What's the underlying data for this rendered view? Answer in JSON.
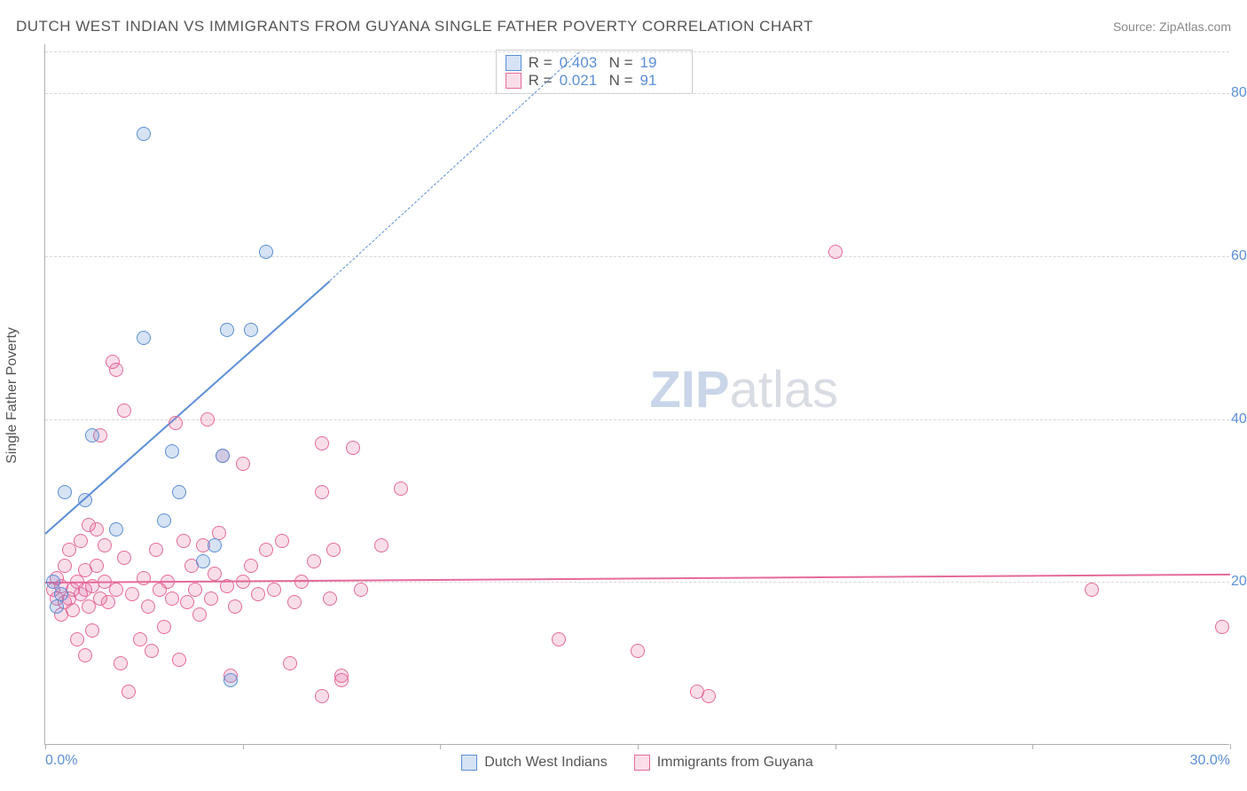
{
  "title": "DUTCH WEST INDIAN VS IMMIGRANTS FROM GUYANA SINGLE FATHER POVERTY CORRELATION CHART",
  "source": "Source: ZipAtlas.com",
  "ylabel": "Single Father Poverty",
  "watermark_zip": "ZIP",
  "watermark_atlas": "atlas",
  "chart": {
    "type": "scatter",
    "background_color": "#ffffff",
    "grid_color": "#d8d8d8",
    "axis_color": "#b0b0b0",
    "tick_label_color": "#5b8fd6",
    "label_color": "#555555",
    "xlim": [
      0,
      30
    ],
    "ylim": [
      0,
      86
    ],
    "xticks": [
      0,
      5,
      10,
      15,
      20,
      25,
      30
    ],
    "xtick_labels": {
      "0": "0.0%",
      "30": "30.0%"
    },
    "yticks": [
      20,
      40,
      60,
      80
    ],
    "ytick_labels": {
      "20": "20.0%",
      "40": "40.0%",
      "60": "60.0%",
      "80": "80.0%"
    },
    "watermark_color_bold": "#c9d5e8",
    "watermark_color_light": "#d9dde3",
    "watermark_fontsize": 58,
    "point_radius": 8,
    "point_border_width": 1.5,
    "point_fill_opacity": 0.25
  },
  "series": {
    "blue": {
      "label": "Dutch West Indians",
      "color": "#5b8fd6",
      "fill": "rgba(91,143,214,0.25)",
      "R": "0.403",
      "N": "19",
      "trend_solid": {
        "x1": 0,
        "y1": 26,
        "x2": 7.2,
        "y2": 57,
        "width": 2.5
      },
      "trend_dashed": {
        "x1": 7.2,
        "y1": 57,
        "x2": 13.5,
        "y2": 85,
        "width": 1
      },
      "points": [
        [
          0.2,
          20
        ],
        [
          0.3,
          17
        ],
        [
          0.4,
          18.5
        ],
        [
          0.5,
          31
        ],
        [
          1.0,
          30
        ],
        [
          1.2,
          38
        ],
        [
          1.8,
          26.5
        ],
        [
          2.5,
          75
        ],
        [
          2.5,
          50
        ],
        [
          3.0,
          27.5
        ],
        [
          3.2,
          36
        ],
        [
          3.4,
          31
        ],
        [
          4.0,
          22.5
        ],
        [
          4.3,
          24.5
        ],
        [
          4.5,
          35.5
        ],
        [
          4.6,
          51
        ],
        [
          4.7,
          8
        ],
        [
          5.6,
          60.5
        ],
        [
          5.2,
          51
        ]
      ]
    },
    "pink": {
      "label": "Immigrants from Guyana",
      "color": "#e56a9a",
      "fill": "rgba(229,106,154,0.22)",
      "R": "0.021",
      "N": "91",
      "trend_solid": {
        "x1": 0,
        "y1": 20,
        "x2": 30,
        "y2": 21,
        "width": 2
      },
      "points": [
        [
          0.2,
          19
        ],
        [
          0.3,
          18
        ],
        [
          0.3,
          20.5
        ],
        [
          0.4,
          16
        ],
        [
          0.4,
          19.5
        ],
        [
          0.5,
          17.5
        ],
        [
          0.5,
          22
        ],
        [
          0.6,
          18
        ],
        [
          0.6,
          24
        ],
        [
          0.7,
          19
        ],
        [
          0.7,
          16.5
        ],
        [
          0.8,
          13
        ],
        [
          0.8,
          20
        ],
        [
          0.9,
          18.5
        ],
        [
          0.9,
          25
        ],
        [
          1.0,
          19
        ],
        [
          1.0,
          21.5
        ],
        [
          1.0,
          11
        ],
        [
          1.1,
          17
        ],
        [
          1.1,
          27
        ],
        [
          1.2,
          19.5
        ],
        [
          1.2,
          14
        ],
        [
          1.3,
          22
        ],
        [
          1.3,
          26.5
        ],
        [
          1.4,
          18
        ],
        [
          1.4,
          38
        ],
        [
          1.5,
          20
        ],
        [
          1.5,
          24.5
        ],
        [
          1.6,
          17.5
        ],
        [
          1.7,
          47
        ],
        [
          1.8,
          46
        ],
        [
          1.8,
          19
        ],
        [
          1.9,
          10
        ],
        [
          2.0,
          23
        ],
        [
          2.0,
          41
        ],
        [
          2.1,
          6.5
        ],
        [
          2.2,
          18.5
        ],
        [
          2.4,
          13
        ],
        [
          2.5,
          20.5
        ],
        [
          2.6,
          17
        ],
        [
          2.7,
          11.5
        ],
        [
          2.8,
          24
        ],
        [
          2.9,
          19
        ],
        [
          3.0,
          14.5
        ],
        [
          3.1,
          20
        ],
        [
          3.2,
          18
        ],
        [
          3.3,
          39.5
        ],
        [
          3.4,
          10.5
        ],
        [
          3.5,
          25
        ],
        [
          3.6,
          17.5
        ],
        [
          3.7,
          22
        ],
        [
          3.8,
          19
        ],
        [
          3.9,
          16
        ],
        [
          4.0,
          24.5
        ],
        [
          4.1,
          40
        ],
        [
          4.2,
          18
        ],
        [
          4.3,
          21
        ],
        [
          4.4,
          26
        ],
        [
          4.5,
          35.5
        ],
        [
          4.6,
          19.5
        ],
        [
          4.7,
          8.5
        ],
        [
          4.8,
          17
        ],
        [
          5.0,
          20
        ],
        [
          5.0,
          34.5
        ],
        [
          5.2,
          22
        ],
        [
          5.4,
          18.5
        ],
        [
          5.6,
          24
        ],
        [
          5.8,
          19
        ],
        [
          6.0,
          25
        ],
        [
          6.2,
          10
        ],
        [
          6.3,
          17.5
        ],
        [
          6.5,
          20
        ],
        [
          6.8,
          22.5
        ],
        [
          7.0,
          31
        ],
        [
          7.0,
          37
        ],
        [
          7.0,
          6
        ],
        [
          7.2,
          18
        ],
        [
          7.3,
          24
        ],
        [
          7.5,
          8
        ],
        [
          7.5,
          8.5
        ],
        [
          7.8,
          36.5
        ],
        [
          8.0,
          19
        ],
        [
          8.5,
          24.5
        ],
        [
          9.0,
          31.5
        ],
        [
          13.0,
          13
        ],
        [
          15.0,
          11.5
        ],
        [
          16.5,
          6.5
        ],
        [
          16.8,
          6
        ],
        [
          20.0,
          60.5
        ],
        [
          26.5,
          19
        ],
        [
          29.8,
          14.5
        ]
      ]
    }
  }
}
